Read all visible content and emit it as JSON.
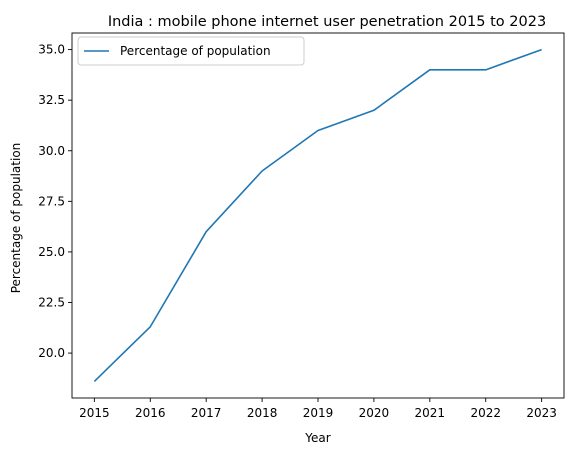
{
  "chart_data": {
    "type": "line",
    "title": "India : mobile phone internet user penetration 2015 to 2023",
    "xlabel": "Year",
    "ylabel": "Percentage of population",
    "x": [
      2015,
      2016,
      2017,
      2018,
      2019,
      2020,
      2021,
      2022,
      2023
    ],
    "series": [
      {
        "name": "Percentage of population",
        "values": [
          18.6,
          21.3,
          26.0,
          29.0,
          31.0,
          32.0,
          34.0,
          34.0,
          35.0
        ],
        "color": "#1f77b4"
      }
    ],
    "xlim": [
      2014.6,
      2023.4
    ],
    "ylim": [
      17.78,
      35.82
    ],
    "xticks": [
      "2015",
      "2016",
      "2017",
      "2018",
      "2019",
      "2020",
      "2021",
      "2022",
      "2023"
    ],
    "yticks": [
      "20.0",
      "22.5",
      "25.0",
      "27.5",
      "30.0",
      "32.5",
      "35.0"
    ],
    "grid": false,
    "legend": "top-left"
  }
}
